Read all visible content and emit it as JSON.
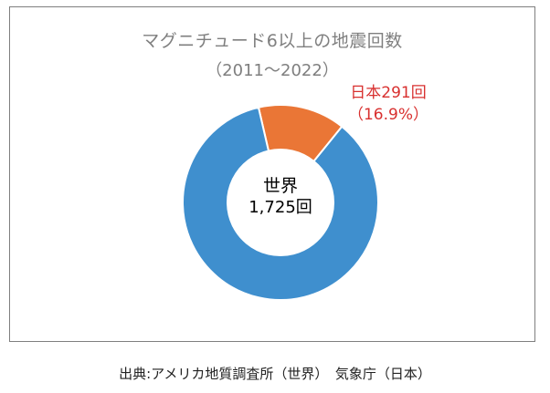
{
  "chart_data": {
    "type": "pie",
    "variant": "donut",
    "title": "マグニチュード6以上の地震回数",
    "subtitle": "（2011〜2022）",
    "series": [
      {
        "name": "世界",
        "value": 1725,
        "label_lines": [
          "世界",
          "1,725回"
        ],
        "color": "#3f8fce"
      },
      {
        "name": "日本",
        "value": 291,
        "label_lines": [
          "日本291回",
          "（16.9%）"
        ],
        "color": "#ea7636",
        "label_color": "#d8302f"
      }
    ],
    "center_label_lines": [
      "世界",
      "1,725回"
    ]
  },
  "source": {
    "text": "出典:アメリカ地質調査所（世界）　気象庁（日本）"
  }
}
